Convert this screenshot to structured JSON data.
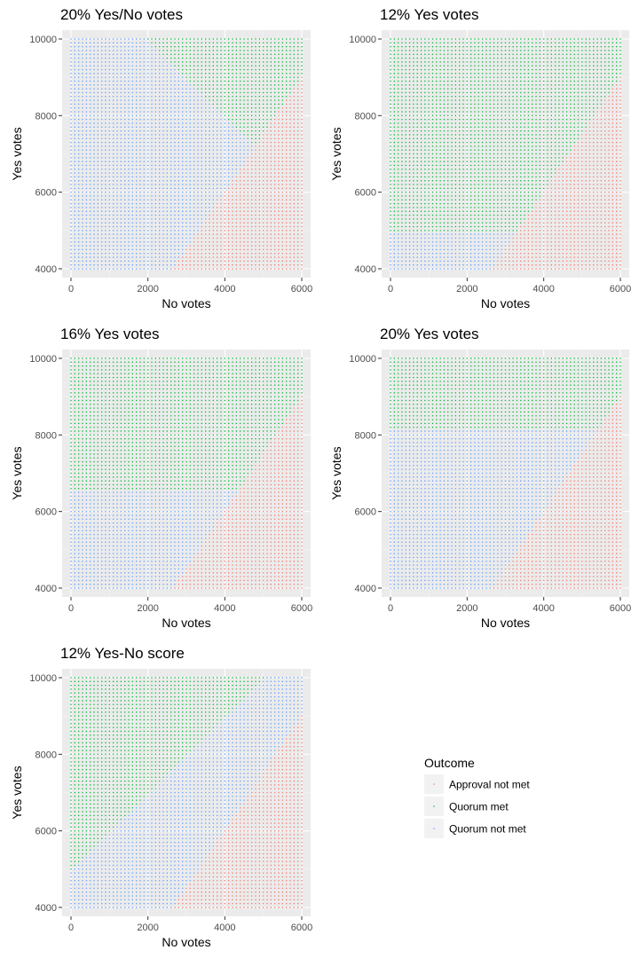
{
  "chart_data": [
    {
      "type": "scatter",
      "title": "20% Yes/No votes",
      "rule": "sum_threshold",
      "quorum_boundary": "yes + no >= 12000",
      "xlabel": "No votes",
      "ylabel": "Yes votes",
      "xlim": [
        0,
        6000
      ],
      "ylim": [
        4000,
        10000
      ],
      "xticks": [
        "0",
        "2000",
        "4000",
        "6000"
      ],
      "yticks": [
        "4000",
        "6000",
        "8000",
        "10000"
      ]
    },
    {
      "type": "scatter",
      "title": "12% Yes votes",
      "rule": "yes_threshold",
      "quorum_boundary": "yes >= 4920",
      "xlabel": "No votes",
      "ylabel": "Yes votes",
      "xlim": [
        0,
        6000
      ],
      "ylim": [
        4000,
        10000
      ],
      "xticks": [
        "0",
        "2000",
        "4000",
        "6000"
      ],
      "yticks": [
        "4000",
        "6000",
        "8000",
        "10000"
      ]
    },
    {
      "type": "scatter",
      "title": "16% Yes votes",
      "rule": "yes_threshold",
      "quorum_boundary": "yes >= 6560",
      "xlabel": "No votes",
      "ylabel": "Yes votes",
      "xlim": [
        0,
        6000
      ],
      "ylim": [
        4000,
        10000
      ],
      "xticks": [
        "0",
        "2000",
        "4000",
        "6000"
      ],
      "yticks": [
        "4000",
        "6000",
        "8000",
        "10000"
      ]
    },
    {
      "type": "scatter",
      "title": "20% Yes votes",
      "rule": "yes_threshold",
      "quorum_boundary": "yes >= 8200",
      "xlabel": "No votes",
      "ylabel": "Yes votes",
      "xlim": [
        0,
        6000
      ],
      "ylim": [
        4000,
        10000
      ],
      "xticks": [
        "0",
        "2000",
        "4000",
        "6000"
      ],
      "yticks": [
        "4000",
        "6000",
        "8000",
        "10000"
      ]
    },
    {
      "type": "scatter",
      "title": "12% Yes-No score",
      "rule": "diff_threshold",
      "quorum_boundary": "yes - no >= 5000",
      "xlabel": "No votes",
      "ylabel": "Yes votes",
      "xlim": [
        0,
        6000
      ],
      "ylim": [
        4000,
        10000
      ],
      "xticks": [
        "0",
        "2000",
        "4000",
        "6000"
      ],
      "yticks": [
        "4000",
        "6000",
        "8000",
        "10000"
      ]
    }
  ],
  "approval_boundary": "yes > 1.5 * no",
  "legend": {
    "title": "Outcome",
    "items": [
      {
        "label": "Approval not met",
        "color": "#F8766D"
      },
      {
        "label": "Quorum met",
        "color": "#00BA38"
      },
      {
        "label": "Quorum not met",
        "color": "#619CFF"
      }
    ]
  }
}
